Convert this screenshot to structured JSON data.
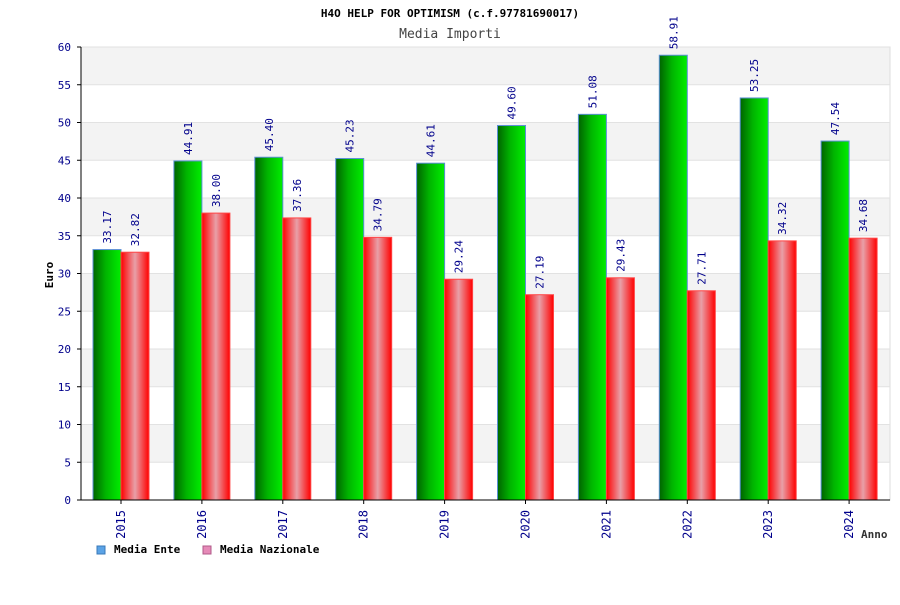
{
  "chart_data": {
    "type": "bar",
    "title": "H4O HELP FOR OPTIMISM (c.f.97781690017)",
    "subtitle": "Media Importi",
    "xlabel": "Anno",
    "ylabel": "Euro",
    "ylim": [
      0,
      60
    ],
    "yticks": [
      0,
      5,
      10,
      15,
      20,
      25,
      30,
      35,
      40,
      45,
      50,
      55,
      60
    ],
    "grid": true,
    "legend_placement": "bottom-left",
    "categories": [
      "2015",
      "2016",
      "2017",
      "2018",
      "2019",
      "2020",
      "2021",
      "2022",
      "2023",
      "2024"
    ],
    "series": [
      {
        "name": "Media Ente",
        "color": "#00cc00",
        "legend_color": "#5ba3e6",
        "values": [
          33.17,
          44.91,
          45.4,
          45.23,
          44.61,
          49.6,
          51.08,
          58.91,
          53.25,
          47.54
        ],
        "labels": [
          "33.17",
          "44.91",
          "45.40",
          "45.23",
          "44.61",
          "49.60",
          "51.08",
          "58.91",
          "53.25",
          "47.54"
        ]
      },
      {
        "name": "Media Nazionale",
        "color": "#ff0000",
        "legend_color": "#e68ab8",
        "values": [
          32.82,
          38.0,
          37.36,
          34.79,
          29.24,
          27.19,
          29.43,
          27.71,
          34.32,
          34.68
        ],
        "labels": [
          "32.82",
          "38.00",
          "37.36",
          "34.79",
          "29.24",
          "27.19",
          "29.43",
          "27.71",
          "34.32",
          "34.68"
        ]
      }
    ]
  }
}
